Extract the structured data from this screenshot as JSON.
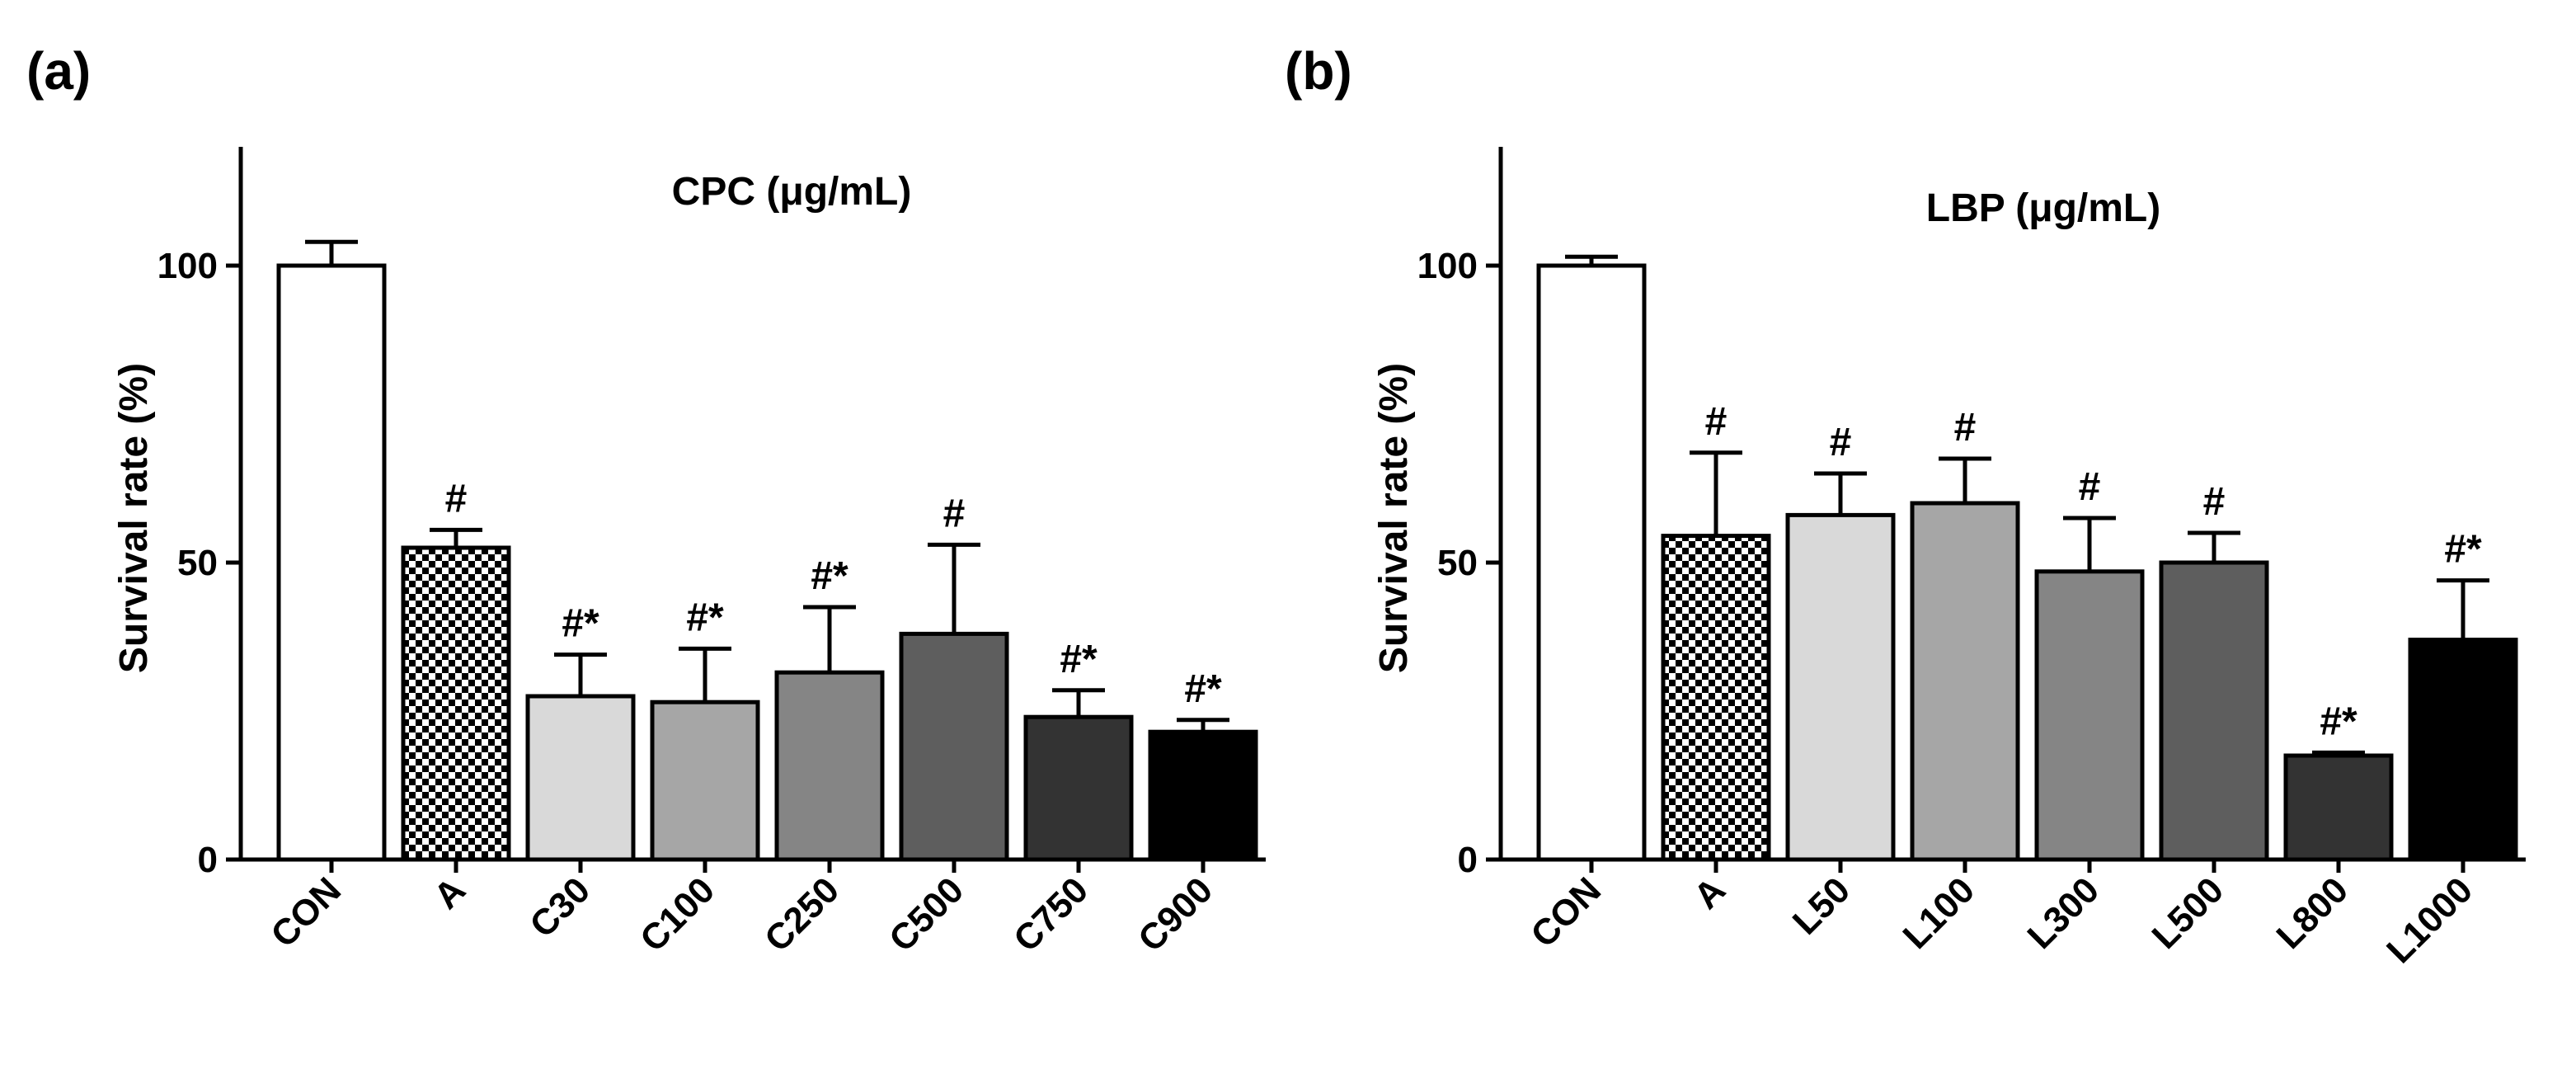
{
  "figure": {
    "panels": [
      "(a)",
      "(b)"
    ]
  },
  "chart_data": [
    {
      "type": "bar",
      "panel_label": "(a)",
      "title": "CPC (μg/mL)",
      "xlabel": "",
      "ylabel": "Survival rate (%)",
      "ylim": [
        0,
        120
      ],
      "yticks": [
        0,
        50,
        100
      ],
      "ytick_labels": [
        "0",
        "50",
        "100"
      ],
      "categories": [
        "CON",
        "A",
        "C30",
        "C100",
        "C250",
        "C500",
        "C750",
        "C900"
      ],
      "values": [
        100,
        52.5,
        27.5,
        26.5,
        31.5,
        38,
        24,
        21.5
      ],
      "errors": [
        4,
        3,
        7,
        9,
        11,
        15,
        4.5,
        2
      ],
      "annotations": [
        "",
        "#",
        "#*",
        "#*",
        "#*",
        "#",
        "#*",
        "#*"
      ],
      "fills": [
        "#ffffff",
        "checker",
        "#d9d9d9",
        "#a6a6a6",
        "#858585",
        "#5e5e5e",
        "#333333",
        "#000000"
      ]
    },
    {
      "type": "bar",
      "panel_label": "(b)",
      "title": "LBP (μg/mL)",
      "xlabel": "",
      "ylabel": "Survival rate (%)",
      "ylim": [
        0,
        120
      ],
      "yticks": [
        0,
        50,
        100
      ],
      "ytick_labels": [
        "0",
        "50",
        "100"
      ],
      "categories": [
        "CON",
        "A",
        "L50",
        "L100",
        "L300",
        "L500",
        "L800",
        "L1000"
      ],
      "values": [
        100,
        54.5,
        58,
        60,
        48.5,
        50,
        17.5,
        37
      ],
      "errors": [
        1.5,
        14,
        7,
        7.5,
        9,
        5,
        0.5,
        10
      ],
      "annotations": [
        "",
        "#",
        "#",
        "#",
        "#",
        "#",
        "#*",
        "#*"
      ],
      "fills": [
        "#ffffff",
        "checker",
        "#d9d9d9",
        "#a6a6a6",
        "#858585",
        "#5e5e5e",
        "#333333",
        "#000000"
      ]
    }
  ]
}
